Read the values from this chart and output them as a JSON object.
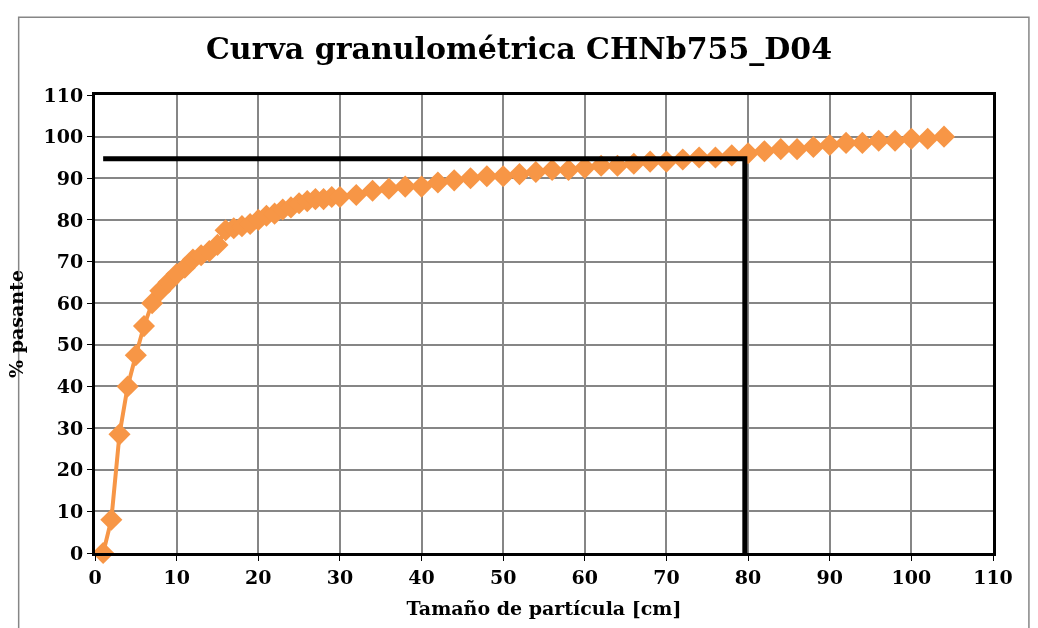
{
  "chart_data": {
    "type": "line",
    "title": "Curva granulométrica CHNb755_D04",
    "xlabel": "Tamaño de partícula [cm]",
    "ylabel": "% pasante",
    "series": [
      {
        "color": "#f79646",
        "marker": "diamond",
        "x": [
          1,
          2,
          3,
          4,
          5,
          6,
          7,
          8,
          9,
          10,
          11,
          12,
          13,
          14,
          15,
          16,
          17,
          18,
          19,
          20,
          21,
          22,
          23,
          24,
          25,
          26,
          27,
          28,
          29,
          30,
          32,
          34,
          36,
          38,
          40,
          42,
          44,
          46,
          48,
          50,
          52,
          54,
          56,
          58,
          60,
          62,
          64,
          66,
          68,
          70,
          72,
          74,
          76,
          78,
          80,
          82,
          84,
          86,
          88,
          90,
          92,
          94,
          96,
          98,
          100,
          102,
          104
        ],
        "values": [
          0,
          8,
          28.5,
          40,
          47.5,
          54.5,
          60,
          63,
          65,
          67,
          68.5,
          70.5,
          71.5,
          72.5,
          74,
          77.5,
          78,
          78.5,
          79,
          80,
          81,
          81.5,
          82.5,
          83,
          84,
          84.5,
          85,
          85,
          85.5,
          85.5,
          86,
          87,
          87.5,
          88,
          88,
          89,
          89.5,
          90,
          90.5,
          90.5,
          91,
          91.5,
          92,
          92,
          92.5,
          93,
          93,
          93.5,
          94,
          94,
          94.5,
          95,
          95,
          95.5,
          96,
          96.5,
          97,
          97,
          97.5,
          98,
          98.5,
          98.5,
          99,
          99,
          99.5,
          99.5,
          100
        ]
      },
      {
        "color": "#000000",
        "marker": "none",
        "x": [
          1,
          79.6,
          79.6
        ],
        "values": [
          94.7,
          94.7,
          0
        ]
      }
    ],
    "xlim": [
      0,
      110
    ],
    "xticks": [
      0,
      10,
      20,
      30,
      40,
      50,
      60,
      70,
      80,
      90,
      100,
      110
    ],
    "ylim": [
      0,
      110
    ],
    "yticks": [
      0,
      10,
      20,
      30,
      40,
      50,
      60,
      70,
      80,
      90,
      100,
      110
    ],
    "grid": true
  }
}
